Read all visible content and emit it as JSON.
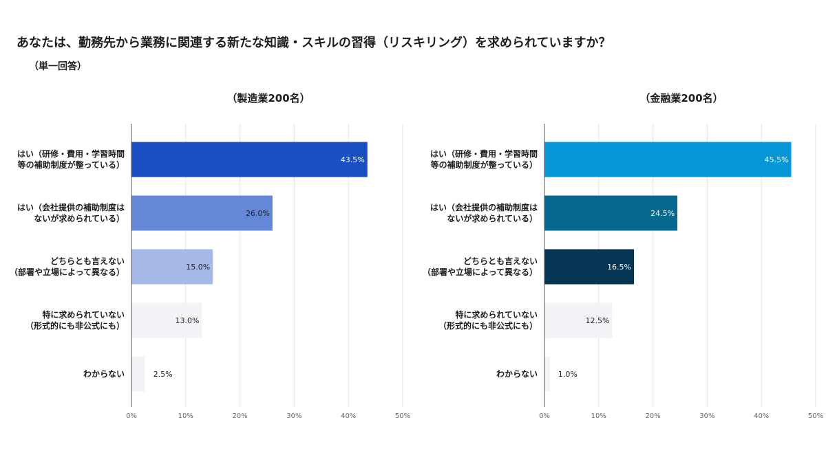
{
  "title": "あなたは、勤務先から業務に関連する新たな知識・スキルの習得（リスキリング）を求められていますか？",
  "subtitle": "（単一回答）",
  "chart_data": [
    {
      "type": "bar",
      "orientation": "horizontal",
      "title": "（製造業200名）",
      "categories": [
        [
          "はい（研修・費用・学習時間",
          "等の補助制度が整っている）"
        ],
        [
          "はい（会社提供の補助制度は",
          "ないが求められている）"
        ],
        [
          "どちらとも言えない",
          "（部署や立場によって異なる）"
        ],
        [
          "特に求められていない",
          "（形式的にも非公式にも）"
        ],
        [
          "わからない"
        ]
      ],
      "values": [
        43.5,
        26.0,
        15.0,
        13.0,
        2.5
      ],
      "value_labels": [
        "43.5%",
        "26.0%",
        "15.0%",
        "13.0%",
        "2.5%"
      ],
      "colors": [
        "#1b50c4",
        "#6487d8",
        "#a6b9e8",
        "#f3f3f7",
        "#f3f3f7"
      ],
      "label_colors": [
        "#ffffff",
        "#222222",
        "#222222",
        "#222222",
        "#222222"
      ],
      "xlim": [
        0,
        50
      ],
      "ticks": [
        0,
        10,
        20,
        30,
        40,
        50
      ],
      "tick_labels": [
        "0%",
        "10%",
        "20%",
        "30%",
        "40%",
        "50%"
      ],
      "grid": true
    },
    {
      "type": "bar",
      "orientation": "horizontal",
      "title": "（金融業200名）",
      "categories": [
        [
          "はい（研修・費用・学習時間",
          "等の補助制度が整っている）"
        ],
        [
          "はい（会社提供の補助制度は",
          "ないが求められている）"
        ],
        [
          "どちらとも言えない",
          "（部署や立場によって異なる）"
        ],
        [
          "特に求められていない",
          "（形式的にも非公式にも）"
        ],
        [
          "わからない"
        ]
      ],
      "values": [
        45.5,
        24.5,
        16.5,
        12.5,
        1.0
      ],
      "value_labels": [
        "45.5%",
        "24.5%",
        "16.5%",
        "12.5%",
        "1.0%"
      ],
      "colors": [
        "#0596d8",
        "#05698f",
        "#053553",
        "#f3f3f7",
        "#f3f3f7"
      ],
      "label_colors": [
        "#ffffff",
        "#ffffff",
        "#ffffff",
        "#222222",
        "#222222"
      ],
      "xlim": [
        0,
        50
      ],
      "ticks": [
        0,
        10,
        20,
        30,
        40,
        50
      ],
      "tick_labels": [
        "0%",
        "10%",
        "20%",
        "30%",
        "40%",
        "50%"
      ],
      "grid": true
    }
  ]
}
